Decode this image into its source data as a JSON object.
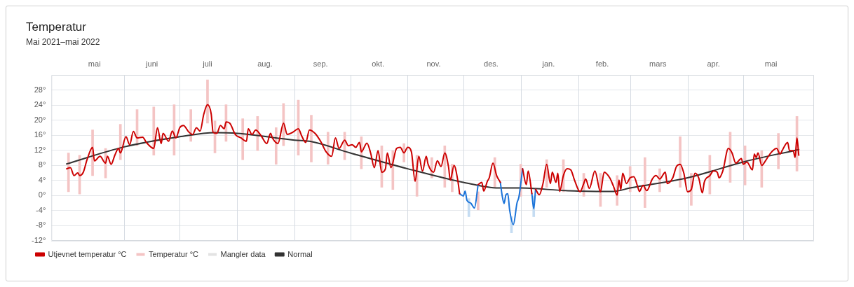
{
  "chart_data": {
    "type": "line",
    "title": "Temperatur",
    "subtitle": "Mai 2021–mai 2022",
    "xlim": [
      "2021-05-01",
      "2022-05-31"
    ],
    "xticks": [
      {
        "value": "2021-05-16",
        "label": "mai"
      },
      {
        "value": "2021-06-01",
        "label": null
      },
      {
        "value": "2021-06-16",
        "label": "juni"
      },
      {
        "value": "2021-07-01",
        "label": null
      },
      {
        "value": "2021-07-16",
        "label": "juli"
      },
      {
        "value": "2021-08-01",
        "label": null
      },
      {
        "value": "2021-08-16",
        "label": "aug."
      },
      {
        "value": "2021-09-01",
        "label": null
      },
      {
        "value": "2021-09-15",
        "label": "sep."
      },
      {
        "value": "2021-10-01",
        "label": null
      },
      {
        "value": "2021-10-16",
        "label": "okt."
      },
      {
        "value": "2021-11-01",
        "label": null
      },
      {
        "value": "2021-11-15",
        "label": "nov."
      },
      {
        "value": "2021-12-01",
        "label": null
      },
      {
        "value": "2021-12-16",
        "label": "des."
      },
      {
        "value": "2022-01-01",
        "label": null
      },
      {
        "value": "2022-01-16",
        "label": "jan."
      },
      {
        "value": "2022-02-01",
        "label": null
      },
      {
        "value": "2022-02-14",
        "label": "feb."
      },
      {
        "value": "2022-03-01",
        "label": null
      },
      {
        "value": "2022-03-16",
        "label": "mars"
      },
      {
        "value": "2022-04-01",
        "label": null
      },
      {
        "value": "2022-04-15",
        "label": "apr."
      },
      {
        "value": "2022-05-01",
        "label": null
      },
      {
        "value": "2022-05-16",
        "label": "mai"
      }
    ],
    "ylim": [
      -12,
      32
    ],
    "yticks": [
      {
        "value": -12,
        "label": "-12°"
      },
      {
        "value": -8,
        "label": "-8°"
      },
      {
        "value": -4,
        "label": "-4°"
      },
      {
        "value": 0,
        "label": "0°"
      },
      {
        "value": 4,
        "label": "4°"
      },
      {
        "value": 8,
        "label": "8°"
      },
      {
        "value": 12,
        "label": "12°"
      },
      {
        "value": 16,
        "label": "16°"
      },
      {
        "value": 20,
        "label": "20°"
      },
      {
        "value": 24,
        "label": "24°"
      },
      {
        "value": 28,
        "label": "28°"
      }
    ],
    "grid": true,
    "legend": "bottom left",
    "marker": "none",
    "series": [
      {
        "name": "Utjevnet temperatur °C",
        "color": "#cc0000",
        "x": [
          "2021-05-01",
          "2021-05-03",
          "2021-05-05",
          "2021-05-07",
          "2021-05-08",
          "2021-05-10",
          "2021-05-12",
          "2021-05-15",
          "2021-05-16",
          "2021-05-19",
          "2021-05-22",
          "2021-05-23",
          "2021-05-25",
          "2021-05-27",
          "2021-05-29",
          "2021-05-30",
          "2021-06-02",
          "2021-06-04",
          "2021-06-06",
          "2021-06-08",
          "2021-06-11",
          "2021-06-13",
          "2021-06-17",
          "2021-06-19",
          "2021-06-21",
          "2021-06-22",
          "2021-06-25",
          "2021-06-27",
          "2021-06-29",
          "2021-07-01",
          "2021-07-03",
          "2021-07-06",
          "2021-07-08",
          "2021-07-10",
          "2021-07-12",
          "2021-07-14",
          "2021-07-16",
          "2021-07-18",
          "2021-07-19",
          "2021-07-21",
          "2021-07-23",
          "2021-07-25",
          "2021-07-26",
          "2021-07-28",
          "2021-07-31",
          "2021-08-03",
          "2021-08-06",
          "2021-08-07",
          "2021-08-09",
          "2021-08-11",
          "2021-08-14",
          "2021-08-17",
          "2021-08-19",
          "2021-08-20",
          "2021-08-23",
          "2021-08-26",
          "2021-08-28",
          "2021-08-31",
          "2021-09-03",
          "2021-09-05",
          "2021-09-07",
          "2021-09-09",
          "2021-09-12",
          "2021-09-15",
          "2021-09-18",
          "2021-09-21",
          "2021-09-23",
          "2021-09-25",
          "2021-09-28",
          "2021-09-30",
          "2021-10-02",
          "2021-10-04",
          "2021-10-06",
          "2021-10-07",
          "2021-10-10",
          "2021-10-12",
          "2021-10-14",
          "2021-10-16",
          "2021-10-18",
          "2021-10-20",
          "2021-10-21",
          "2021-10-23",
          "2021-10-26",
          "2021-10-28",
          "2021-10-30",
          "2021-11-01",
          "2021-11-03",
          "2021-11-05",
          "2021-11-07",
          "2021-11-09",
          "2021-11-11",
          "2021-11-12",
          "2021-11-15",
          "2021-11-17",
          "2021-11-19",
          "2021-11-21",
          "2021-11-23",
          "2021-11-24",
          "2021-11-26",
          "2021-11-28",
          "2021-11-29",
          "2021-12-03",
          "2021-12-09",
          "2021-12-11",
          "2021-12-12",
          "2021-12-14",
          "2021-12-15",
          "2021-12-17",
          "2021-12-19",
          "2021-12-21",
          "2021-12-26",
          "2022-01-02",
          "2022-01-04",
          "2022-01-05",
          "2022-01-07",
          "2022-01-08",
          "2022-01-09",
          "2022-01-11",
          "2022-01-13",
          "2022-01-15",
          "2022-01-17",
          "2022-01-18",
          "2022-01-20",
          "2022-01-21",
          "2022-01-22",
          "2022-01-24",
          "2022-01-26",
          "2022-01-28",
          "2022-01-30",
          "2022-02-02",
          "2022-02-04",
          "2022-02-05",
          "2022-02-07",
          "2022-02-10",
          "2022-02-13",
          "2022-02-15",
          "2022-02-18",
          "2022-02-20",
          "2022-02-22",
          "2022-02-23",
          "2022-02-24",
          "2022-02-25",
          "2022-02-27",
          "2022-03-01",
          "2022-03-03",
          "2022-03-05",
          "2022-03-06",
          "2022-03-08",
          "2022-03-10",
          "2022-03-13",
          "2022-03-15",
          "2022-03-17",
          "2022-03-20",
          "2022-03-21",
          "2022-03-24",
          "2022-03-26",
          "2022-03-28",
          "2022-03-30",
          "2022-04-01",
          "2022-04-03",
          "2022-04-05",
          "2022-04-07",
          "2022-04-09",
          "2022-04-10",
          "2022-04-13",
          "2022-04-15",
          "2022-04-17",
          "2022-04-18",
          "2022-04-20",
          "2022-04-23",
          "2022-04-25",
          "2022-04-27",
          "2022-04-30",
          "2022-05-01",
          "2022-05-03",
          "2022-05-06",
          "2022-05-07",
          "2022-05-08",
          "2022-05-09",
          "2022-05-11",
          "2022-05-13",
          "2022-05-15",
          "2022-05-17",
          "2022-05-19",
          "2022-05-21",
          "2022-05-22",
          "2022-05-25",
          "2022-05-26",
          "2022-05-28",
          "2022-05-29",
          "2022-05-30",
          "2022-05-31"
        ],
        "values": [
          7.1,
          7.4,
          5.3,
          6.0,
          5.3,
          6.2,
          9.5,
          12.8,
          9.2,
          10.4,
          8.6,
          10.4,
          8.3,
          10.7,
          12.5,
          11.3,
          15.6,
          13.5,
          17.0,
          15.3,
          15.5,
          14.1,
          12.5,
          18.0,
          13.8,
          16.5,
          14.4,
          17.1,
          15.3,
          18.0,
          18.6,
          16.8,
          16.2,
          18.0,
          17.1,
          21.6,
          24.1,
          21.6,
          16.8,
          16.5,
          18.6,
          17.7,
          19.5,
          19.2,
          16.2,
          15.3,
          14.4,
          17.7,
          16.2,
          17.4,
          15.8,
          13.8,
          16.5,
          15.3,
          13.8,
          19.2,
          16.2,
          16.8,
          17.7,
          15.6,
          14.1,
          17.4,
          16.5,
          14.4,
          11.6,
          10.4,
          15.3,
          12.5,
          14.7,
          13.2,
          13.5,
          12.8,
          14.1,
          11.6,
          13.9,
          11.3,
          7.4,
          11.9,
          6.2,
          7.1,
          11.3,
          7.4,
          12.5,
          12.8,
          11.3,
          12.8,
          11.6,
          3.8,
          10.4,
          6.5,
          10.4,
          8.3,
          6.2,
          9.2,
          7.7,
          11.3,
          7.7,
          4.1,
          8.0,
          4.1,
          0.5,
          null,
          2.9,
          3.5,
          1.2,
          3.8,
          4.7,
          8.6,
          5.3,
          3.5,
          null,
          7.1,
          2.9,
          6.5,
          0.5,
          null,
          1.7,
          0.2,
          3.2,
          8.3,
          3.2,
          6.2,
          3.5,
          5.9,
          1.1,
          5.3,
          7.1,
          6.8,
          4.1,
          1.0,
          3.2,
          4.4,
          1.9,
          6.5,
          1.0,
          6.2,
          4.7,
          2.5,
          0.1,
          4.1,
          1.6,
          5.9,
          3.2,
          4.7,
          5.0,
          2.5,
          1.1,
          2.7,
          1.3,
          4.4,
          5.3,
          4.4,
          6.2,
          3.2,
          4.7,
          7.7,
          8.3,
          5.9,
          1.0,
          1.6,
          5.9,
          4.7,
          0.7,
          3.5,
          5.3,
          6.5,
          6.2,
          4.7,
          6.5,
          12.5,
          11.3,
          8.6,
          9.8,
          8.3,
          8.9,
          6.8,
          11.0,
          10.1,
          11.3,
          8.0,
          9.2,
          10.7,
          11.9,
          12.5,
          11.0,
          11.9,
          14.1,
          11.9,
          11.9,
          10.1,
          15.3,
          10.7
        ]
      },
      {
        "color": "#1a73d9",
        "x": [
          "2021-11-29",
          "2021-12-01",
          "2021-12-02",
          "2021-12-03",
          "2021-12-05",
          "2021-12-07",
          "2021-12-09",
          "2021-12-15",
          "2021-12-21",
          "2021-12-22",
          "2021-12-23",
          "2021-12-24",
          "2021-12-25",
          "2021-12-26",
          "2021-12-28",
          "2021-12-30",
          "2021-12-31",
          "2022-01-02",
          "2022-01-05",
          "2022-01-07",
          "2022-01-08",
          "2022-01-09"
        ],
        "values": [
          0.5,
          -0.1,
          1.2,
          -1.3,
          -2.0,
          -3.3,
          2.9,
          null,
          3.5,
          -0.1,
          -2.1,
          0.2,
          0.5,
          -3.8,
          -7.7,
          -1.9,
          -0.4,
          7.1,
          null,
          0.5,
          -3.5,
          1.7
        ]
      },
      {
        "name": "Temperatur °C",
        "type": "bar",
        "color": "#f4c4c4",
        "x": [
          "2021-05-02",
          "2021-05-08",
          "2021-05-15",
          "2021-05-22",
          "2021-05-30",
          "2021-06-08",
          "2021-06-17",
          "2021-06-28",
          "2021-07-07",
          "2021-07-16",
          "2021-07-20",
          "2021-07-26",
          "2021-08-04",
          "2021-08-12",
          "2021-08-22",
          "2021-08-26",
          "2021-09-03",
          "2021-09-10",
          "2021-09-19",
          "2021-09-28",
          "2021-10-07",
          "2021-10-18",
          "2021-10-24",
          "2021-10-30",
          "2021-11-06",
          "2021-11-14",
          "2021-11-21",
          "2021-11-25",
          "2021-12-04",
          "2021-12-09",
          "2021-12-18",
          "2021-12-27",
          "2022-01-01",
          "2022-01-08",
          "2022-01-15",
          "2022-01-24",
          "2022-02-04",
          "2022-02-13",
          "2022-02-22",
          "2022-03-01",
          "2022-03-09",
          "2022-03-17",
          "2022-03-28",
          "2022-04-03",
          "2022-04-13",
          "2022-04-24",
          "2022-05-02",
          "2022-05-11",
          "2022-05-20",
          "2022-05-30"
        ],
        "base": [
          1.0,
          0.4,
          5.3,
          4.7,
          9.5,
          13.2,
          10.7,
          10.7,
          14.4,
          19.2,
          11.3,
          14.4,
          9.5,
          11.9,
          8.3,
          13.2,
          10.7,
          8.9,
          8.3,
          9.5,
          7.1,
          2.2,
          1.6,
          8.9,
          -0.2,
          4.7,
          2.2,
          1.0,
          -5.6,
          -3.8,
          2.2,
          -9.9,
          -0.2,
          -5.6,
          2.2,
          1.0,
          -0.2,
          -2.9,
          -2.6,
          1.0,
          -3.2,
          1.0,
          2.2,
          -2.6,
          0.4,
          3.5,
          2.8,
          2.2,
          7.1,
          6.5
        ],
        "values": [
          10.3,
          10.3,
          12.1,
          7.8,
          9.4,
          9.6,
          12.8,
          13.4,
          8.4,
          11.5,
          8.5,
          9.7,
          10.9,
          9.1,
          9.7,
          11.2,
          14.6,
          12.4,
          8.5,
          7.3,
          8.5,
          11.0,
          10.3,
          4.9,
          10.9,
          5.4,
          11.0,
          7.3,
          4.8,
          4.8,
          7.9,
          4.3,
          8.5,
          5.4,
          7.3,
          8.5,
          6.1,
          8.8,
          7.9,
          6.7,
          13.3,
          6.1,
          13.4,
          8.5,
          10.3,
          13.3,
          10.4,
          9.7,
          9.4,
          14.5
        ],
        "colors": [
          null,
          null,
          null,
          null,
          null,
          null,
          null,
          null,
          null,
          null,
          null,
          null,
          null,
          null,
          null,
          null,
          null,
          null,
          null,
          null,
          null,
          null,
          null,
          null,
          null,
          null,
          null,
          null,
          "#c5dcf2",
          null,
          null,
          "#c5dcf2",
          null,
          "#c5dcf2",
          null,
          null,
          null,
          null,
          null,
          null,
          null,
          null,
          null,
          null,
          null,
          null,
          null,
          null,
          null,
          null
        ]
      },
      {
        "name": "Mangler data",
        "type": "bar",
        "color": "#e3e3e3"
      },
      {
        "name": "Normal",
        "color": "#333333",
        "x": [
          "2021-05-01",
          "2021-06-01",
          "2021-07-01",
          "2021-07-20",
          "2021-08-01",
          "2021-09-01",
          "2021-09-10",
          "2021-10-01",
          "2021-11-01",
          "2021-12-01",
          "2021-12-20",
          "2022-01-01",
          "2022-01-25",
          "2022-02-01",
          "2022-02-20",
          "2022-03-01",
          "2022-04-01",
          "2022-05-01",
          "2022-05-31"
        ],
        "values": [
          8.4,
          12.9,
          15.6,
          16.7,
          16.5,
          14.7,
          14.3,
          11.3,
          7.1,
          3.5,
          2.0,
          2.0,
          1.3,
          1.2,
          1.1,
          2.0,
          4.7,
          8.9,
          12.2
        ]
      }
    ]
  }
}
